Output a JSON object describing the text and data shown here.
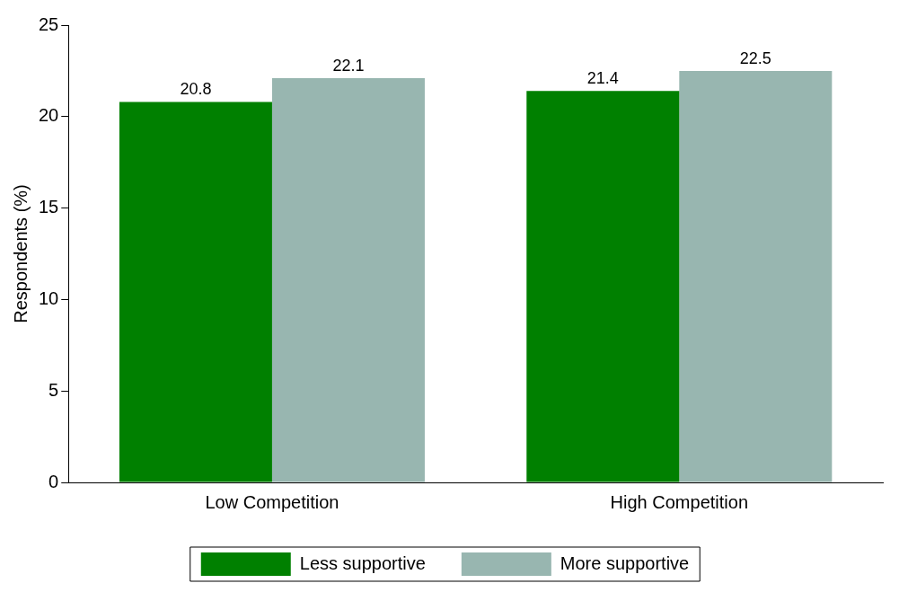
{
  "chart_data": {
    "type": "bar",
    "ylabel": "Respondents (%)",
    "categories": [
      "Low Competition",
      "High Competition"
    ],
    "series": [
      {
        "name": "Less supportive",
        "color": "#008000",
        "values": [
          20.8,
          21.4
        ]
      },
      {
        "name": "More supportive",
        "color": "#98b6b0",
        "values": [
          22.1,
          22.5
        ]
      }
    ],
    "ylim": [
      0,
      25
    ],
    "yticks": [
      0,
      5,
      10,
      15,
      20,
      25
    ],
    "grid": false,
    "legend": "bottom",
    "data_labels": true
  }
}
